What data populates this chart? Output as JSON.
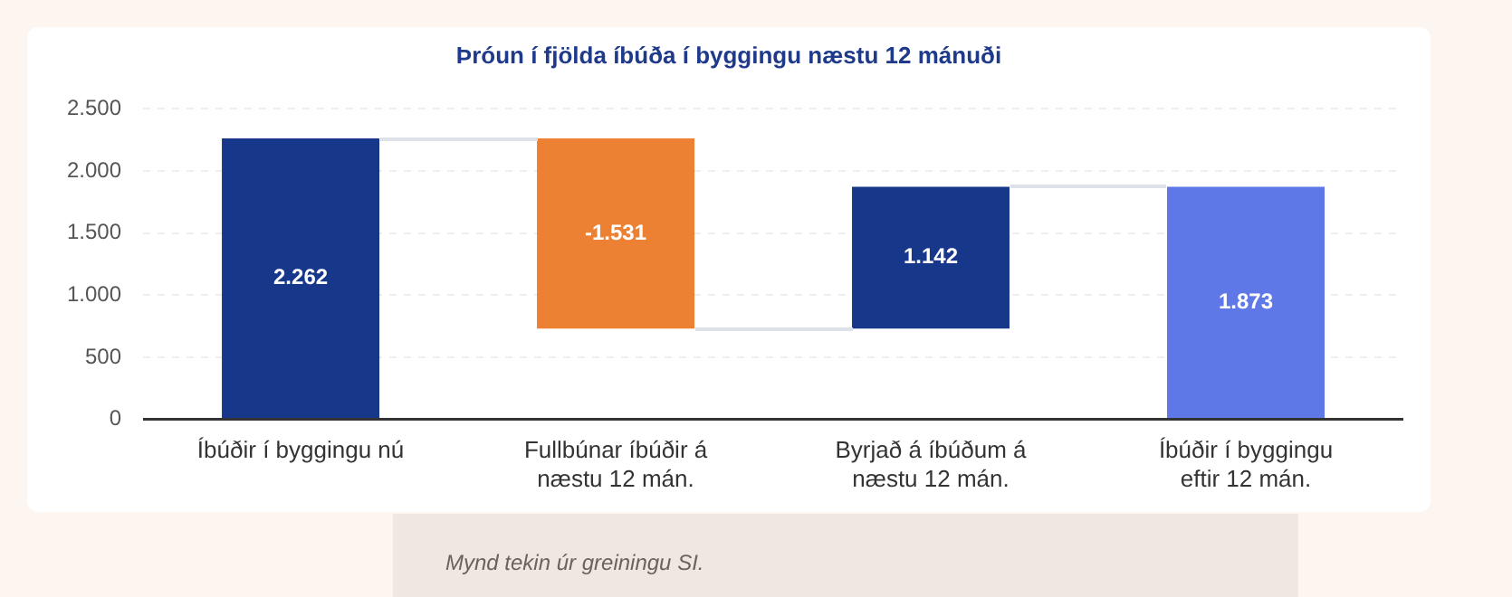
{
  "chart_data": {
    "type": "bar",
    "title": "Þróun í fjölda íbúða í byggingu næstu 12 mánuði",
    "categories": [
      "Íbúðir í byggingu nú",
      "Fullbúnar íbúðir á næstu 12 mán.",
      "Byrjað á íbúðum á næstu 12 mán.",
      "Íbúðir í byggingu eftir 12 mán."
    ],
    "values": [
      2262,
      -1531,
      1142,
      1873
    ],
    "base": [
      0,
      2262,
      731,
      0
    ],
    "colors": [
      "#17378a",
      "#ed8133",
      "#17378a",
      "#5f78e8"
    ],
    "value_labels": [
      "2.262",
      "-1.531",
      "1.142",
      "1.873"
    ],
    "ylim": [
      0,
      2500
    ],
    "yticks": [
      0,
      {
        "value": 500,
        "label": "500"
      },
      {
        "value": 1000,
        "label": "1.000"
      },
      {
        "value": 1500,
        "label": "1.500"
      },
      {
        "value": 2000,
        "label": "2.000"
      },
      {
        "value": 2500,
        "label": "2.500"
      }
    ],
    "grid": "y",
    "legend": false,
    "annotations": [
      "Mynd tekin úr greiningu SI."
    ]
  }
}
